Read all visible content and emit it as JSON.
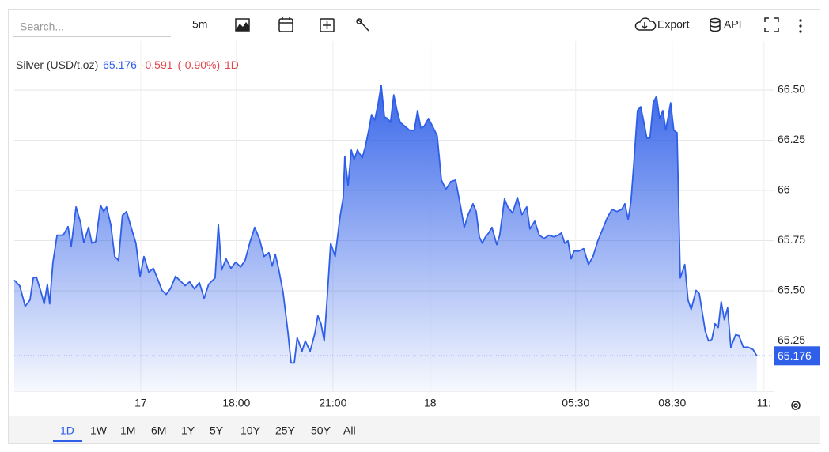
{
  "toolbar": {
    "search_placeholder": "Search...",
    "interval": "5m",
    "export": "Export",
    "api": "API"
  },
  "chart_data": {
    "type": "area",
    "title": "Silver (USD/t.oz)",
    "last_price": 65.176,
    "change": -0.591,
    "change_percent": {
      "value": -0.9,
      "label": "(-0.90%)"
    },
    "period": "1D",
    "color": "#2f5fe8",
    "x": [
      11.07,
      11.24,
      11.41,
      11.56,
      11.66,
      11.76,
      11.9,
      12.0,
      12.1,
      12.17,
      12.27,
      12.4,
      12.59,
      12.74,
      12.84,
      12.99,
      13.13,
      13.23,
      13.38,
      13.48,
      13.6,
      13.75,
      13.85,
      13.94,
      14.07,
      14.19,
      14.31,
      14.43,
      14.56,
      14.68,
      14.85,
      14.98,
      15.1,
      15.25,
      15.39,
      15.54,
      15.66,
      15.79,
      15.93,
      16.08,
      16.23,
      16.38,
      16.52,
      16.67,
      16.82,
      16.97,
      17.11,
      17.31,
      17.41,
      17.51,
      17.65,
      17.8,
      17.95,
      18.1,
      18.24,
      18.39,
      18.54,
      18.69,
      18.83,
      18.98,
      19.08,
      19.18,
      19.28,
      19.42,
      19.57,
      19.67,
      19.77,
      19.86,
      20.01,
      20.11,
      20.26,
      20.41,
      20.5,
      20.6,
      20.7,
      20.8,
      20.9,
      21.04,
      21.19,
      21.29,
      21.34,
      21.44,
      21.54,
      21.63,
      21.73,
      21.88,
      21.98,
      22.08,
      22.17,
      22.27,
      22.37,
      22.47,
      22.57,
      22.67,
      22.76,
      22.86,
      22.96,
      23.06,
      23.21,
      23.35,
      23.5,
      23.6,
      23.7,
      23.8,
      23.94,
      24.09,
      24.21,
      24.34,
      24.48,
      24.63,
      24.78,
      24.93,
      25.05,
      25.17,
      25.32,
      25.42,
      25.52,
      25.61,
      25.71,
      25.81,
      25.91,
      26.06,
      26.15,
      26.3,
      26.4,
      26.55,
      26.7,
      26.84,
      26.99,
      27.09,
      27.24,
      27.38,
      27.53,
      27.68,
      27.83,
      27.97,
      28.07,
      28.17,
      28.27,
      28.37,
      28.46,
      28.61,
      28.76,
      28.91,
      29.05,
      29.2,
      29.35,
      29.5,
      29.64,
      29.79,
      29.94,
      30.04,
      30.14,
      30.23,
      30.33,
      30.43,
      30.53,
      30.63,
      30.72,
      30.82,
      30.92,
      31.02,
      31.12,
      31.22,
      31.31,
      31.46,
      31.56,
      31.66,
      31.76,
      31.9,
      32.0,
      32.1,
      32.25,
      32.35,
      32.44,
      32.54,
      32.64,
      32.74,
      32.84,
      32.94,
      33.03,
      33.13,
      33.23,
      33.33,
      33.48,
      33.58,
      33.72,
      33.87,
      34.02,
      34.14
    ],
    "values": [
      65.553,
      65.525,
      65.423,
      65.454,
      65.564,
      65.568,
      65.494,
      65.435,
      65.533,
      65.435,
      65.639,
      65.777,
      65.777,
      65.82,
      65.722,
      65.918,
      65.84,
      65.741,
      65.816,
      65.737,
      65.745,
      65.926,
      65.895,
      65.918,
      65.828,
      65.671,
      65.651,
      65.875,
      65.895,
      65.828,
      65.737,
      65.572,
      65.671,
      65.592,
      65.612,
      65.553,
      65.502,
      65.482,
      65.513,
      65.572,
      65.549,
      65.525,
      65.545,
      65.509,
      65.541,
      65.462,
      65.533,
      65.564,
      65.832,
      65.604,
      65.659,
      65.612,
      65.643,
      65.619,
      65.651,
      65.741,
      65.816,
      65.757,
      65.671,
      65.69,
      65.623,
      65.682,
      65.612,
      65.494,
      65.297,
      65.14,
      65.14,
      65.266,
      65.199,
      65.25,
      65.199,
      65.289,
      65.376,
      65.336,
      65.25,
      65.486,
      65.737,
      65.671,
      65.867,
      65.965,
      66.17,
      66.024,
      66.201,
      66.154,
      66.201,
      66.162,
      66.221,
      66.3,
      66.378,
      66.351,
      66.429,
      66.524,
      66.366,
      66.358,
      66.339,
      66.476,
      66.398,
      66.339,
      66.319,
      66.3,
      66.3,
      66.398,
      66.311,
      66.319,
      66.358,
      66.311,
      66.272,
      66.052,
      66.005,
      66.044,
      66.052,
      65.926,
      65.816,
      65.879,
      65.934,
      65.895,
      65.769,
      65.737,
      65.769,
      65.788,
      65.816,
      65.73,
      65.777,
      65.958,
      65.918,
      65.887,
      65.965,
      65.879,
      65.918,
      65.808,
      65.847,
      65.777,
      65.761,
      65.777,
      65.769,
      65.777,
      65.788,
      65.737,
      65.749,
      65.659,
      65.698,
      65.698,
      65.71,
      65.631,
      65.671,
      65.749,
      65.808,
      65.867,
      65.906,
      65.895,
      65.906,
      65.934,
      65.855,
      65.946,
      66.162,
      66.398,
      66.417,
      66.339,
      66.26,
      66.26,
      66.437,
      66.469,
      66.358,
      66.398,
      66.3,
      66.437,
      66.3,
      66.288,
      65.564,
      65.631,
      65.454,
      65.407,
      65.502,
      65.486,
      65.395,
      65.297,
      65.25,
      65.258,
      65.336,
      65.317,
      65.446,
      65.356,
      65.415,
      65.219,
      65.281,
      65.277,
      65.219,
      65.219,
      65.207,
      65.176
    ],
    "xlim": [
      11.07,
      34.66
    ],
    "ylim": [
      65.0,
      66.744
    ],
    "xticks": [
      {
        "value": 15,
        "label": "17"
      },
      {
        "value": 17.97,
        "label": "18:00"
      },
      {
        "value": 20.97,
        "label": "21:00"
      },
      {
        "value": 23.99,
        "label": "18"
      },
      {
        "value": 28.51,
        "label": "05:30"
      },
      {
        "value": 31.51,
        "label": "08:30"
      },
      {
        "value": 34.36,
        "label": "11:"
      }
    ],
    "yticks": [
      65.25,
      {
        "value": 65.5,
        "label": "65.50"
      },
      65.75,
      66,
      66.25,
      {
        "value": 66.5,
        "label": "66.50"
      }
    ],
    "grid": true
  },
  "range_buttons": {
    "items": [
      "1D",
      "1W",
      "1M",
      "6M",
      "1Y",
      "5Y",
      "10Y",
      "25Y",
      "50Y",
      "All"
    ],
    "active": 0
  }
}
